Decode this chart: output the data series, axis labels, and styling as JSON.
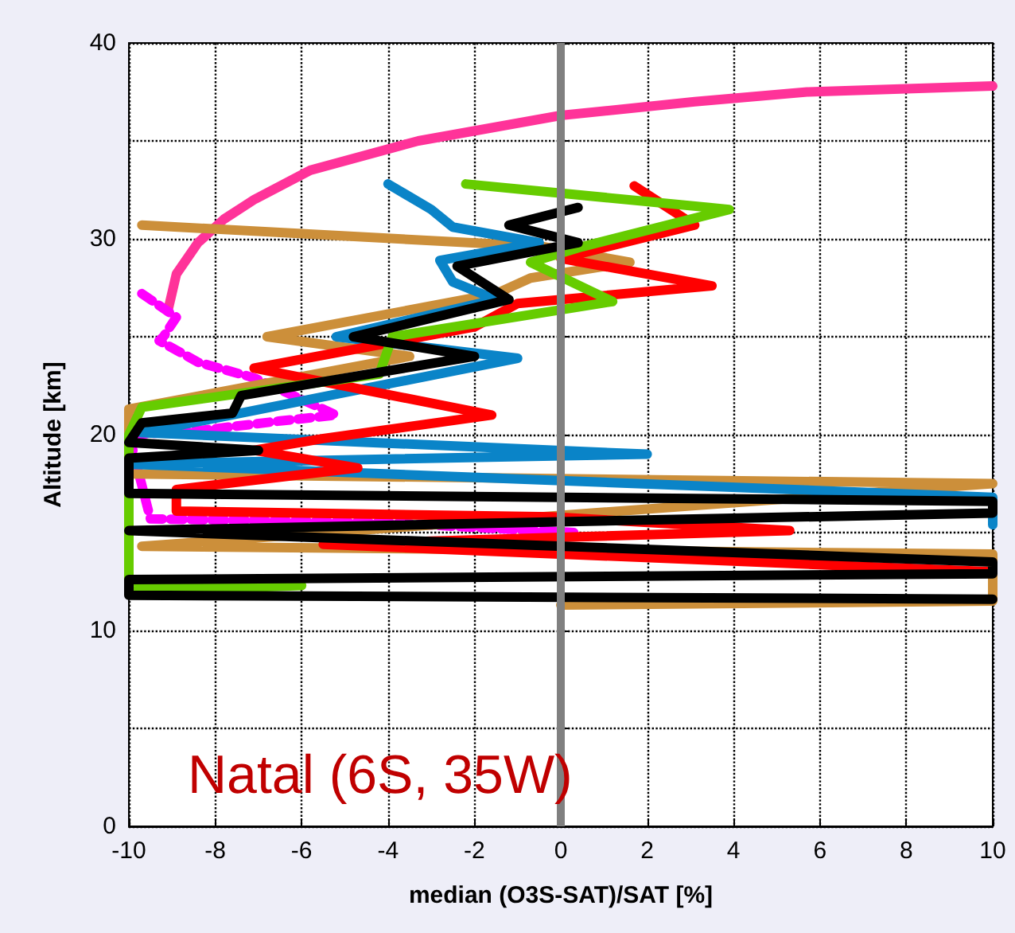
{
  "chart_data": {
    "type": "line",
    "xlabel": "median (O3S-SAT)/SAT [%]",
    "ylabel": "Altitude [km]",
    "annotations": [
      "Natal (6S, 35W)"
    ],
    "xlim": [
      -10,
      10
    ],
    "xticks": [
      -10,
      -8,
      -6,
      -4,
      -2,
      0,
      2,
      4,
      6,
      8,
      10
    ],
    "ylim": [
      0,
      40
    ],
    "yticks": [
      0,
      {
        "value": 5,
        "label": null
      },
      10,
      {
        "value": 15,
        "label": null
      },
      20,
      {
        "value": 25,
        "label": null
      },
      30,
      {
        "value": 35,
        "label": null
      },
      40
    ],
    "grid": true,
    "marker": "none",
    "line_style": "solid",
    "ref_lines": [
      {
        "axis": "x",
        "value": 0,
        "color": "#808080"
      }
    ],
    "series": [
      {
        "color": "#ff3399",
        "x": [
          -9.1,
          -8.9,
          -8.4,
          -7.8,
          -7.1,
          -5.8,
          -3.3,
          0,
          3.1,
          5.7,
          10
        ],
        "values": [
          26.3,
          28.2,
          29.8,
          31,
          32,
          33.5,
          35,
          36.3,
          37,
          37.5,
          37.8
        ]
      },
      {
        "color": "#ff00ff",
        "line_style": "dashed",
        "x": [
          -9.7,
          -8.9,
          -9.2,
          -9.3,
          -8.4,
          -7.1,
          -5.2,
          -6.5,
          -8.4,
          -10,
          -9.5,
          -4,
          0.3
        ],
        "values": [
          27.2,
          26,
          25,
          24.8,
          23.7,
          22.9,
          21,
          20.7,
          20.2,
          20,
          15.7,
          15.5,
          15
        ]
      },
      {
        "color": "#cc8f3a",
        "x": [
          -9.7,
          -0.4,
          1.6,
          -0.7,
          -1.5,
          -6.8,
          -3.5,
          -10,
          -10,
          10,
          -9.7,
          10,
          10,
          0
        ],
        "values": [
          30.7,
          29.6,
          28.8,
          28,
          27.2,
          25,
          24,
          21.3,
          18,
          17.5,
          14.3,
          13.9,
          11.5,
          11.3
        ]
      },
      {
        "color": "#0a84c8",
        "x": [
          -4,
          -3,
          -2.5,
          -0.5,
          -2.8,
          -2.5,
          -1.5,
          -5.2,
          -1,
          -9.7,
          2,
          -10,
          10,
          10
        ],
        "values": [
          32.8,
          31.5,
          30.6,
          29.8,
          28.9,
          27.8,
          26.9,
          25,
          23.9,
          20.1,
          19,
          18.5,
          16.8,
          15.4
        ]
      },
      {
        "color": "#ff0000",
        "x": [
          1.7,
          3.1,
          0,
          3.5,
          -1,
          -2,
          -7.1,
          -1.6,
          -5.5,
          -7.1,
          -4.7,
          -8.9,
          -8.9,
          -0.2,
          5.3,
          -5.5,
          10
        ],
        "values": [
          32.7,
          30.7,
          29,
          27.6,
          26.7,
          25.5,
          23.4,
          21,
          19.8,
          19.2,
          18.3,
          17.2,
          16.1,
          15.8,
          15.1,
          14.4,
          13
        ]
      },
      {
        "color": "#66cc00",
        "x": [
          -2.2,
          3.9,
          0.5,
          -0.7,
          1.2,
          -3.9,
          -4.2,
          -9.7,
          -10,
          -10,
          -6,
          -10
        ],
        "values": [
          32.8,
          31.5,
          29.6,
          28.8,
          26.8,
          25,
          23.1,
          21.4,
          20,
          12.5,
          12.3,
          12
        ]
      },
      {
        "color": "#000000",
        "x": [
          0.4,
          -1.2,
          0.4,
          -2.4,
          -1.2,
          -4.8,
          -2,
          -7.4,
          -7.6,
          -9.7,
          -10,
          -7,
          -10,
          -10,
          10,
          10,
          -10,
          10,
          10,
          -10,
          -10,
          10
        ],
        "values": [
          31.6,
          30.7,
          29.8,
          28.6,
          26.9,
          25,
          24,
          22,
          21.1,
          20.6,
          19.6,
          19.2,
          18.8,
          17,
          16.6,
          16,
          15.1,
          13.5,
          12.9,
          12.6,
          11.8,
          11.6
        ]
      }
    ]
  }
}
